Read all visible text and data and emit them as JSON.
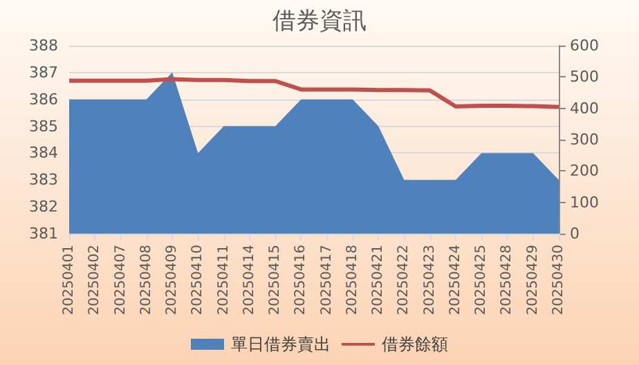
{
  "chart_data": {
    "type": "area",
    "title": "借券資訊",
    "categories": [
      "20250401",
      "20250402",
      "20250407",
      "20250408",
      "20250409",
      "20250410",
      "20250411",
      "20250414",
      "20250415",
      "20250416",
      "20250417",
      "20250418",
      "20250421",
      "20250422",
      "20250423",
      "20250424",
      "20250425",
      "20250428",
      "20250429",
      "20250430"
    ],
    "series": [
      {
        "name": "單日借券賣出",
        "color": "#4f81bd",
        "values": [
          386,
          386,
          386,
          386,
          387,
          384,
          385,
          385,
          385,
          386,
          386,
          386,
          385,
          383,
          383,
          383,
          384,
          384,
          384,
          383
        ]
      },
      {
        "name": "借券餘額",
        "type": "line",
        "axis": "y2",
        "color": "#c0504d",
        "values": [
          488,
          488,
          488,
          488,
          493,
          490,
          490,
          487,
          487,
          460,
          460,
          460,
          458,
          458,
          457,
          406,
          408,
          408,
          407,
          404
        ]
      }
    ],
    "ylim": [
      381,
      388
    ],
    "yticks": [
      381,
      382,
      383,
      384,
      385,
      386,
      387,
      388
    ],
    "y2lim": [
      0,
      600
    ],
    "y2ticks": [
      0,
      100,
      200,
      300,
      400,
      500,
      600
    ],
    "grid": "y",
    "legend": "bottom"
  }
}
